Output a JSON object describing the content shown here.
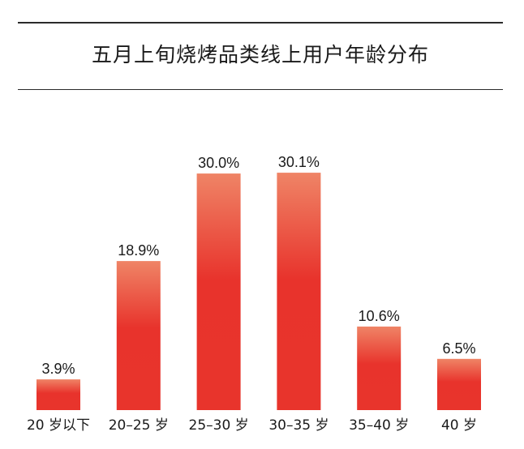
{
  "chart_data": {
    "type": "bar",
    "title": "五月上旬烧烤品类线上用户年龄分布",
    "categories": [
      "20 岁以下",
      "20–25 岁",
      "25–30 岁",
      "30–35 岁",
      "35–40 岁",
      "40 岁"
    ],
    "values": [
      3.9,
      18.9,
      30.0,
      30.1,
      10.6,
      6.5
    ],
    "value_labels": [
      "3.9%",
      "18.9%",
      "30.0%",
      "30.1%",
      "10.6%",
      "6.5%"
    ],
    "unit": "%",
    "xlabel": "",
    "ylabel": "",
    "ylim": [
      0,
      33
    ],
    "grid": false,
    "legend": "none",
    "colors": {
      "bar_top": "#ef8466",
      "bar_mid": "#e8332c",
      "bar_bottom": "#e8342c",
      "text": "#1a1a1a",
      "rule": "#2a2a2a"
    }
  }
}
